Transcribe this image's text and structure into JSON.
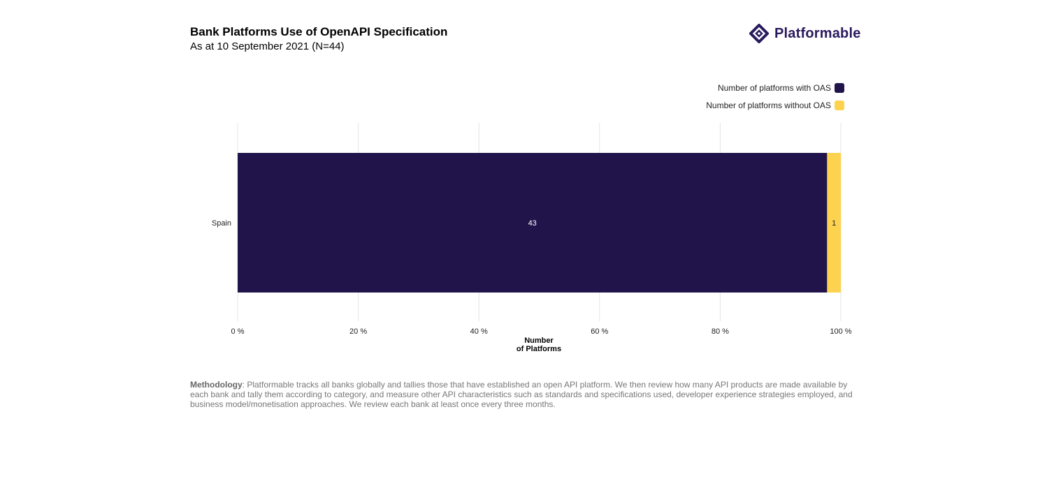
{
  "header": {
    "title": "Bank Platforms Use of OpenAPI Specification",
    "subtitle": "As at 10 September 2021 (N=44)",
    "logo_text": "Platformable"
  },
  "chart_data": {
    "type": "bar",
    "orientation": "horizontal",
    "stacked": "percent",
    "categories": [
      "Spain"
    ],
    "series": [
      {
        "name": "Number of platforms with OAS",
        "values": [
          43
        ],
        "color": "#20144a"
      },
      {
        "name": "Number of platforms without OAS",
        "values": [
          1
        ],
        "color": "#fdd24f"
      }
    ],
    "xlabel": "Number\nof Platforms",
    "xlabel_lines": [
      "Number",
      "of Platforms"
    ],
    "xlim": [
      0,
      100
    ],
    "xticks": [
      "0 %",
      "20 %",
      "40 %",
      "60 %",
      "80 %",
      "100 %"
    ],
    "grid": true,
    "legend": "top-right"
  },
  "footer": {
    "methodology_label": "Methodology",
    "methodology_text": ": Platformable tracks all banks globally and tallies those that have established an open API platform. We then review how many API products are made available by each bank and tally them according to category, and measure other API characteristics such as standards and specifications used, developer experience strategies employed, and business model/monetisation approaches. We review each bank at least once every three months."
  }
}
